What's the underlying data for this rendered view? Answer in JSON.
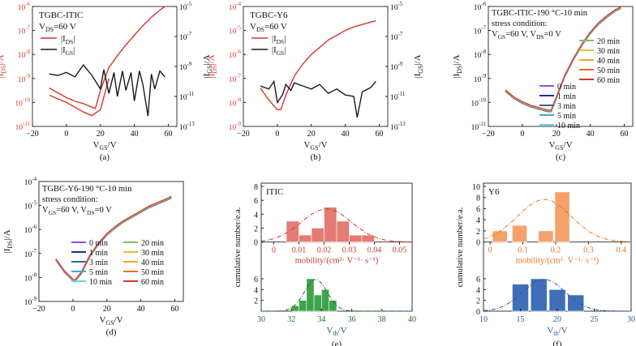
{
  "colors": {
    "red": "#d9342b",
    "black": "#1a1a1a",
    "histRed": "#e57b74",
    "histRedDark": "#c0392b",
    "histGreen": "#3fa34d",
    "greenDark": "#1e6b2a",
    "histOrange": "#f4a26a",
    "orange": "#e8731c",
    "histBlue": "#3f6fb6",
    "blue": "#2b58a5"
  },
  "chart_data": [
    {
      "type": "line",
      "panel": "(a)",
      "title": "TGBC-ITIC",
      "subtitle": "V_DS=60 V",
      "xlabel": "V_GS/V",
      "ylabel_left": "|I_DS|/A",
      "ylabel_right": "|I_GS|/A",
      "xlim": [
        -20,
        65
      ],
      "xticks": [
        "−20",
        "0",
        "20",
        "40",
        "60"
      ],
      "yticks_left": [
        "10^{-11}",
        "10^{-10}",
        "10^{-9}",
        "10^{-8}",
        "10^{-7}",
        "10^{-6}"
      ],
      "yticks_right": [
        "10^{-13}",
        "10^{-11}",
        "10^{-9}",
        "10^{-7}",
        "10^{-5}"
      ],
      "legend": [
        "|I_DS|",
        "|I_GS|"
      ],
      "series": [
        {
          "name": "|I_DS|",
          "axis": "left",
          "color": "red",
          "x": [
            -10,
            -5,
            0,
            5,
            10,
            15,
            17,
            20,
            25,
            30,
            35,
            40,
            45,
            50,
            55,
            58
          ],
          "y": [
            -9.4,
            -9.6,
            -9.8,
            -9.95,
            -10.05,
            -10.2,
            -10.25,
            -9.5,
            -8.55,
            -8.05,
            -7.6,
            -7.2,
            -6.8,
            -6.45,
            -6.15,
            -6.0
          ]
        },
        {
          "name": "|I_DS| (return)",
          "axis": "left",
          "color": "red",
          "x": [
            -10,
            -5,
            0,
            5,
            10,
            15,
            20,
            25
          ],
          "y": [
            -9.7,
            -9.85,
            -10.0,
            -10.2,
            -10.4,
            -10.55,
            -10.3,
            -9.0
          ]
        },
        {
          "name": "|I_GS|",
          "axis": "right",
          "color": "black",
          "x": [
            -10,
            -5,
            0,
            5,
            10,
            15,
            20,
            22,
            25,
            28,
            30,
            33,
            35,
            38,
            40,
            43,
            45,
            48,
            50,
            52,
            55,
            58
          ],
          "y": [
            -9.5,
            -9.6,
            -9.4,
            -9.7,
            -8.9,
            -9.6,
            -10.5,
            -9.2,
            -10.8,
            -9.4,
            -11.0,
            -9.3,
            -10.6,
            -9.4,
            -11.3,
            -9.3,
            -10.2,
            -12.3,
            -9.5,
            -10.5,
            -9.3,
            -9.7
          ]
        }
      ]
    },
    {
      "type": "line",
      "panel": "(b)",
      "title": "TGBC-Y6",
      "subtitle": "V_DS=60 V",
      "xlabel": "V_GS/V",
      "ylabel_left": "|I_DS|/A",
      "ylabel_right": "|I_GS|/A",
      "xlim": [
        -20,
        65
      ],
      "xticks": [
        "−20",
        "0",
        "20",
        "40",
        "60"
      ],
      "yticks_left": [
        "10^{-9}",
        "10^{-8}",
        "10^{-7}",
        "10^{-6}",
        "10^{-5}",
        "10^{-4}"
      ],
      "yticks_right": [
        "10^{-13}",
        "10^{-11}",
        "10^{-9}",
        "10^{-7}",
        "10^{-5}"
      ],
      "legend": [
        "|I_DS|",
        "|I_GS|"
      ],
      "series": [
        {
          "name": "|I_DS|",
          "axis": "left",
          "color": "red",
          "x": [
            -10,
            -5,
            0,
            2,
            5,
            10,
            15,
            20,
            25,
            30,
            35,
            40,
            45,
            50,
            55,
            58
          ],
          "y": [
            -7.4,
            -7.9,
            -8.3,
            -8.3,
            -7.7,
            -6.9,
            -6.4,
            -6.0,
            -5.7,
            -5.4,
            -5.2,
            -5.0,
            -4.85,
            -4.75,
            -4.65,
            -4.6
          ]
        },
        {
          "name": "|I_GS|",
          "axis": "right",
          "color": "black",
          "x": [
            -10,
            -5,
            -2,
            0,
            3,
            5,
            8,
            10,
            15,
            20,
            25,
            30,
            35,
            40,
            45,
            47,
            50,
            55,
            58
          ],
          "y": [
            -10.3,
            -10.5,
            -10.0,
            -11.4,
            -10.9,
            -10.2,
            -10.6,
            -10.1,
            -10.3,
            -10.5,
            -10.2,
            -10.8,
            -10.5,
            -10.9,
            -11.0,
            -12.4,
            -10.7,
            -10.4,
            -10.0
          ]
        }
      ]
    },
    {
      "type": "line",
      "panel": "(c)",
      "title": "TGBC-ITIC-190 °C-10 min",
      "subtitle": "stress condition:",
      "condition": "V_GS=60 V, V_DS=0 V",
      "xlabel": "V_GS/V",
      "ylabel": "|I_DS|/A",
      "xlim": [
        -20,
        65
      ],
      "xticks": [
        "−20",
        "0",
        "20",
        "40",
        "60"
      ],
      "yticks": [
        "10^{-11}",
        "10^{-10}",
        "10^{-9}",
        "10^{-8}",
        "10^{-7}",
        "10^{-6}"
      ],
      "legend": [
        "0 min",
        "1 min",
        "3 min",
        "5 min",
        "10 min",
        "20 min",
        "30 min",
        "40 min",
        "50 min",
        "60 min"
      ],
      "legend_colors": [
        "#9b4fd6",
        "#1f2e99",
        "#2d6b8f",
        "#4aa0d8",
        "#66d3e8",
        "#7fbf5c",
        "#e0c23a",
        "#f0a43c",
        "#e0731c",
        "#d9342b"
      ],
      "x": [
        -10,
        -5,
        0,
        5,
        10,
        15,
        17,
        20,
        25,
        30,
        35,
        40,
        45,
        50,
        55,
        58
      ],
      "y": [
        -9.5,
        -9.8,
        -10.0,
        -10.15,
        -10.25,
        -10.35,
        -10.35,
        -9.8,
        -8.9,
        -8.2,
        -7.6,
        -7.1,
        -6.7,
        -6.4,
        -6.15,
        -6.05
      ]
    },
    {
      "type": "line",
      "panel": "(d)",
      "title": "TGBC-Y6-190 °C-10 min",
      "subtitle": "stress condition:",
      "condition": "V_GS=60 V, V_DS=0 V",
      "xlabel": "V_GS/V",
      "ylabel": "|I_DS|/A",
      "xlim": [
        -20,
        65
      ],
      "xticks": [
        "−20",
        "0",
        "20",
        "40",
        "60"
      ],
      "yticks": [
        "10^{-9}",
        "10^{-8}",
        "10^{-7}",
        "10^{-6}",
        "10^{-5}",
        "10^{-4}"
      ],
      "legend": [
        "0 min",
        "1 min",
        "3 min",
        "5 min",
        "10 min",
        "20 min",
        "30 min",
        "40 min",
        "50 min",
        "60 min"
      ],
      "legend_colors": [
        "#9b4fd6",
        "#1f2e99",
        "#2d6b8f",
        "#4aa0d8",
        "#66d3e8",
        "#7fbf5c",
        "#e0c23a",
        "#f0a43c",
        "#e0731c",
        "#d9342b"
      ],
      "x": [
        -10,
        -5,
        0,
        1,
        5,
        10,
        15,
        20,
        25,
        30,
        35,
        40,
        45,
        50,
        55,
        58
      ],
      "y": [
        -7.25,
        -7.75,
        -8.1,
        -8.15,
        -7.8,
        -7.1,
        -6.6,
        -6.2,
        -5.9,
        -5.65,
        -5.45,
        -5.25,
        -5.05,
        -4.9,
        -4.75,
        -4.65
      ]
    },
    {
      "type": "bar",
      "panel": "(e)",
      "title": "ITIC",
      "ylabel": "cumulative number/e.a.",
      "top": {
        "xlabel": "mobility/(cm²· V⁻¹· s⁻¹)",
        "xlim": [
          -0.005,
          0.055
        ],
        "xticks": [
          "0",
          "0.01",
          "0.02",
          "0.03",
          "0.04",
          "0.05"
        ],
        "ylim": [
          0,
          8
        ],
        "yticks": [
          "0",
          "2",
          "4",
          "6",
          "8"
        ],
        "bins": [
          0.0075,
          0.0125,
          0.0175,
          0.0225,
          0.0275,
          0.0325,
          0.0375
        ],
        "values": [
          3,
          1,
          2,
          5,
          3,
          1,
          1
        ],
        "width": 0.005
      },
      "bottom": {
        "xlabel": "V_th/V",
        "xlim": [
          30,
          40
        ],
        "xticks": [
          "30",
          "32",
          "34",
          "36",
          "38",
          "40"
        ],
        "ylim": [
          0,
          8
        ],
        "yticks": [
          "2",
          "4",
          "6"
        ],
        "bins": [
          32.25,
          32.75,
          33.25,
          33.75,
          34.25,
          34.75
        ],
        "values": [
          1,
          2,
          6,
          3,
          4,
          2
        ],
        "width": 0.5
      }
    },
    {
      "type": "bar",
      "panel": "(f)",
      "title": "Y6",
      "ylabel": "cumulative number/e.a.",
      "top": {
        "xlabel": "mobility/(cm²· V⁻¹· s⁻¹)",
        "xlim": [
          -0.02,
          0.43
        ],
        "xticks": [
          "0",
          "0.1",
          "0.2",
          "0.3",
          "0.4"
        ],
        "ylim": [
          0,
          10
        ],
        "yticks": [
          "0",
          "2",
          "4",
          "6",
          "8",
          "10"
        ],
        "bins": [
          0.03,
          0.09,
          0.17,
          0.22
        ],
        "values": [
          2,
          3,
          2,
          9
        ],
        "width": 0.045
      },
      "bottom": {
        "xlabel": "V_th/V",
        "xlim": [
          10,
          30
        ],
        "xticks": [
          "10",
          "15",
          "20",
          "25",
          "30"
        ],
        "ylim": [
          0,
          8
        ],
        "yticks": [
          "0",
          "2",
          "4",
          "6"
        ],
        "bins": [
          15,
          17.5,
          20,
          22.5
        ],
        "values": [
          5,
          6,
          4,
          3
        ],
        "width": 2.2
      }
    }
  ]
}
